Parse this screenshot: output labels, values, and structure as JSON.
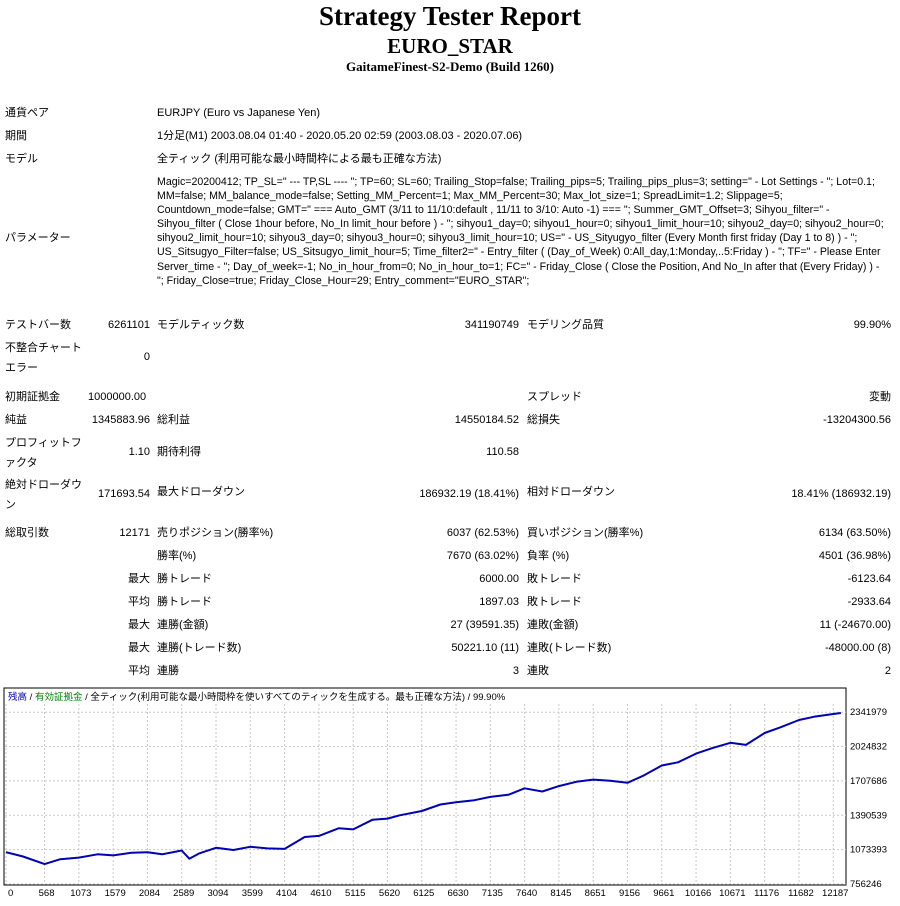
{
  "header": {
    "title": "Strategy Tester Report",
    "ea_name": "EURO_STAR",
    "server": "GaitameFinest-S2-Demo (Build 1260)"
  },
  "info": {
    "symbol_label": "通貨ペア",
    "symbol_value": "EURJPY (Euro vs Japanese Yen)",
    "period_label": "期間",
    "period_value": "1分足(M1) 2003.08.04 01:40 - 2020.05.20 02:59 (2003.08.03 - 2020.07.06)",
    "model_label": "モデル",
    "model_value": "全ティック (利用可能な最小時間枠による最も正確な方法)",
    "params_label": "パラメーター",
    "params_value": "Magic=20200412; TP_SL=\" --- TP,SL ---- \"; TP=60; SL=60; Trailing_Stop=false; Trailing_pips=5; Trailing_pips_plus=3; setting=\" - Lot Settings - \"; Lot=0.1; MM=false; MM_balance_mode=false; Setting_MM_Percent=1; Max_MM_Percent=30; Max_lot_size=1; SpreadLimit=1.2; Slippage=5; Countdown_mode=false; GMT=\" === Auto_GMT (3/11 to 11/10:default , 11/11 to 3/10: Auto -1) === \"; Summer_GMT_Offset=3; Sihyou_filter=\" - Sihyou_filter ( Close 1hour before, No_In limit_hour before ) - \"; sihyou1_day=0; sihyou1_hour=0; sihyou1_limit_hour=10; sihyou2_day=0; sihyou2_hour=0; sihyou2_limit_hour=10; sihyou3_day=0; sihyou3_hour=0; sihyou3_limit_hour=10; US=\" - US_Sityugyo_filter (Every Month first friday (Day 1 to 8) ) - \"; US_Sitsugyo_Filter=false; US_Sitsugyo_limit_hour=5; Time_filter2=\" - Entry_filter ( (Day_of_Week) 0:All_day,1:Monday,..5:Friday ) - \"; TF=\" - Please Enter Server_time - \"; Day_of_week=-1; No_in_hour_from=0; No_in_hour_to=1; FC=\" - Friday_Close ( Close the Position, And No_In after that (Every Friday) ) - \"; Friday_Close=true; Friday_Close_Hour=29; Entry_comment=\"EURO_STAR\";"
  },
  "stats": {
    "bars_label": "テストバー数",
    "bars_value": "6261101",
    "ticks_label": "モデルティック数",
    "ticks_value": "341190749",
    "quality_label": "モデリング品質",
    "quality_value": "99.90%",
    "mismatch_label": "不整合チャートエラー",
    "mismatch_value": "0",
    "deposit_label": "初期証拠金",
    "deposit_value": "1000000.00",
    "spread_label": "スプレッド",
    "spread_value": "変動",
    "net_label": "純益",
    "net_value": "1345883.96",
    "gross_profit_label": "総利益",
    "gross_profit_value": "14550184.52",
    "gross_loss_label": "総損失",
    "gross_loss_value": "-13204300.56",
    "pf_label": "プロフィットファクタ",
    "pf_value": "1.10",
    "expected_label": "期待利得",
    "expected_value": "110.58",
    "abs_dd_label": "絶対ドローダウン",
    "abs_dd_value": "171693.54",
    "max_dd_label": "最大ドローダウン",
    "max_dd_value": "186932.19 (18.41%)",
    "rel_dd_label": "相対ドローダウン",
    "rel_dd_value": "18.41% (186932.19)",
    "trades_label": "総取引数",
    "trades_value": "12171",
    "short_label": "売りポジション(勝率%)",
    "short_value": "6037 (62.53%)",
    "long_label": "買いポジション(勝率%)",
    "long_value": "6134 (63.50%)",
    "winrate_label": "勝率(%)",
    "winrate_value": "7670 (63.02%)",
    "lossrate_label": "負率 (%)",
    "lossrate_value": "4501 (36.98%)",
    "max_label": "最大",
    "avg_label": "平均",
    "win_trade_label": "勝トレード",
    "loss_trade_label": "敗トレード",
    "largest_win": "6000.00",
    "largest_loss": "-6123.64",
    "avg_win": "1897.03",
    "avg_loss": "-2933.64",
    "cons_wins_amt_label": "連勝(金額)",
    "cons_wins_amt_value": "27 (39591.35)",
    "cons_losses_amt_label": "連敗(金額)",
    "cons_losses_amt_value": "11 (-24670.00)",
    "cons_wins_cnt_label": "連勝(トレード数)",
    "cons_wins_cnt_value": "50221.10 (11)",
    "cons_losses_cnt_label": "連敗(トレード数)",
    "cons_losses_cnt_value": "-48000.00 (8)",
    "avg_cons_wins_label": "連勝",
    "avg_cons_wins_value": "3",
    "avg_cons_losses_label": "連敗",
    "avg_cons_losses_value": "2"
  },
  "chart_data": {
    "type": "line",
    "legend": {
      "balance": "残高",
      "sep1": " / ",
      "equity": "有効証拠金",
      "sep2": " / ",
      "model": "全ティック(利用可能な最小時間枠を使いすべてのティックを生成する。最も正確な方法)",
      "quality": " / 99.90%"
    },
    "x_ticks": [
      "0",
      "568",
      "1073",
      "1579",
      "2084",
      "2589",
      "3094",
      "3599",
      "4104",
      "4610",
      "5115",
      "5620",
      "6125",
      "6630",
      "7135",
      "7640",
      "8145",
      "8651",
      "9156",
      "9661",
      "10166",
      "10671",
      "11176",
      "11682",
      "12187"
    ],
    "y_ticks": [
      "2341979",
      "2024832",
      "1707686",
      "1390539",
      "1073393",
      "756246"
    ],
    "xlim": [
      0,
      12360
    ],
    "ylim": [
      756246,
      2390000
    ],
    "series": [
      {
        "color": "#0000b4",
        "x": [
          0,
          250,
          568,
          800,
          1073,
          1350,
          1579,
          1850,
          2084,
          2300,
          2589,
          2700,
          2850,
          3094,
          3350,
          3599,
          3850,
          4104,
          4400,
          4610,
          4900,
          5115,
          5400,
          5620,
          5800,
          6125,
          6400,
          6630,
          6900,
          7135,
          7400,
          7640,
          7900,
          8145,
          8400,
          8651,
          8900,
          9156,
          9400,
          9661,
          9900,
          10166,
          10400,
          10671,
          10900,
          11176,
          11400,
          11682,
          11900,
          12187,
          12300
        ],
        "y": [
          1050000,
          1010000,
          940000,
          985000,
          1000000,
          1030000,
          1020000,
          1045000,
          1050000,
          1030000,
          1065000,
          990000,
          1040000,
          1090000,
          1070000,
          1100000,
          1085000,
          1080000,
          1190000,
          1200000,
          1270000,
          1260000,
          1350000,
          1360000,
          1390000,
          1430000,
          1490000,
          1510000,
          1530000,
          1560000,
          1580000,
          1640000,
          1610000,
          1660000,
          1700000,
          1720000,
          1710000,
          1690000,
          1760000,
          1850000,
          1880000,
          1960000,
          2010000,
          2060000,
          2040000,
          2150000,
          2200000,
          2270000,
          2300000,
          2325000,
          2335000
        ]
      }
    ]
  }
}
